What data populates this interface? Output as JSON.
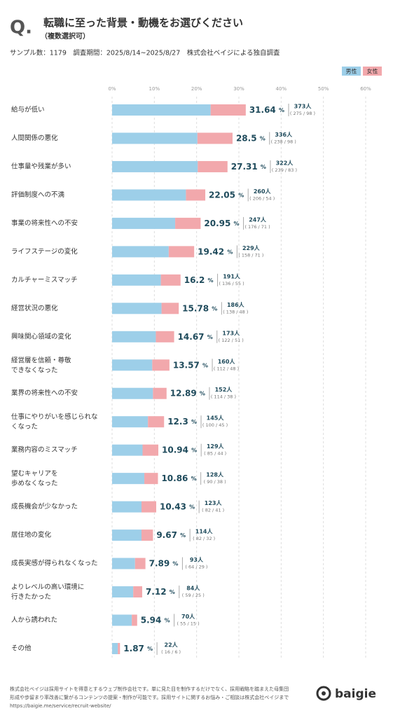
{
  "chart_data": {
    "type": "stacked-barh",
    "title_mark": "Q.",
    "title": "転職に至った背景・動機をお選びください",
    "subtitle": "（複数選択可）",
    "note": "サンプル数：1179　調査期間：2025/8/14~2025/8/27　株式会社ベイジによる独自調査",
    "categories": [
      "給与が低い",
      "人間関係の悪化",
      "仕事量や残業が多い",
      "評価制度への不満",
      "事業の将来性への不安",
      "ライフステージの変化",
      "カルチャーミスマッチ",
      "経営状況の悪化",
      "興味関心領域の変化",
      "経営層を信頼・尊敬\nできなくなった",
      "業界の将来性への不安",
      "仕事にやりがいを感じられな\nくなった",
      "業務内容のミスマッチ",
      "望むキャリアを\n歩めなくなった",
      "成長機会が少なかった",
      "居住地の変化",
      "成長実感が得られなくなった",
      "よりレベルの高い環境に\n行きたかった",
      "人から誘われた",
      "その他"
    ],
    "series": [
      {
        "name": "男性",
        "color": "#9dcfe9",
        "values": [
          23.32,
          20.19,
          20.27,
          17.47,
          14.93,
          13.4,
          11.54,
          11.7,
          10.35,
          9.5,
          9.67,
          8.48,
          7.21,
          7.63,
          6.96,
          6.96,
          5.43,
          5.0,
          4.66,
          1.36
        ]
      },
      {
        "name": "女性",
        "color": "#f2a8ac",
        "values": [
          8.31,
          8.31,
          7.04,
          4.58,
          6.02,
          6.02,
          4.66,
          4.07,
          4.33,
          4.07,
          3.22,
          3.82,
          3.73,
          3.22,
          3.48,
          2.71,
          2.46,
          2.12,
          1.27,
          0.51
        ]
      }
    ],
    "totals": {
      "values": [
        31.64,
        28.5,
        27.31,
        22.05,
        20.95,
        19.42,
        16.2,
        15.78,
        14.67,
        13.57,
        12.89,
        12.3,
        10.94,
        10.86,
        10.43,
        9.67,
        7.89,
        7.12,
        5.94,
        1.87
      ],
      "value_labels": [
        "31.64%",
        "28.5%",
        "27.31%",
        "22.05%",
        "20.95%",
        "19.42%",
        "16.2%",
        "15.78%",
        "14.67%",
        "13.57%",
        "12.89%",
        "12.3%",
        "10.94%",
        "10.86%",
        "10.43%",
        "9.67%",
        "7.89%",
        "7.12%",
        "5.94%",
        "1.87%"
      ]
    },
    "counts": {
      "values": [
        373,
        336,
        322,
        260,
        247,
        229,
        191,
        186,
        173,
        160,
        152,
        145,
        129,
        128,
        123,
        114,
        93,
        84,
        70,
        22
      ],
      "value_labels": [
        "373人",
        "336人",
        "322人",
        "260人",
        "247人",
        "229人",
        "191人",
        "186人",
        "173人",
        "160人",
        "152人",
        "145人",
        "129人",
        "128人",
        "123人",
        "114人",
        "93人",
        "84人",
        "70人",
        "22人"
      ]
    },
    "breakdown_labels": [
      "( 275 / 98 )",
      "( 238 / 98 )",
      "( 239 / 83 )",
      "( 206 / 54 )",
      "( 176 / 71 )",
      "( 158 / 71 )",
      "( 136 / 55 )",
      "( 138 / 48 )",
      "( 122 / 51 )",
      "( 112 / 48 )",
      "( 114 / 38 )",
      "( 100 / 45 )",
      "( 85 / 44 )",
      "( 90 / 38 )",
      "( 82 / 41 )",
      "( 82 / 32 )",
      "( 64 / 29 )",
      "( 59 / 25 )",
      "( 55 / 15 )",
      "( 16 / 6 )"
    ],
    "xlim": [
      0,
      60
    ],
    "xticks": [
      {
        "value": 0,
        "label": "0%"
      },
      {
        "value": 10,
        "label": "10%"
      },
      {
        "value": 20,
        "label": "20%"
      },
      {
        "value": 30,
        "label": "30%"
      },
      {
        "value": 40,
        "label": "40%"
      },
      {
        "value": 50,
        "label": "50%"
      },
      {
        "value": 60,
        "label": "60%"
      }
    ],
    "grid": true
  },
  "footer": {
    "lines": [
      "株式会社ベイジは採用サイトを得意とするウェブ制作会社です。単に見た目を制作するだけでなく、採用戦略を踏まえた母集団",
      "形成や歩留まり率改善に繋がるコンテンツの提案・制作が可能です。採用サイトに関するお悩み・ご相談は株式会社ベイジまで",
      "https://baigie.me/service/recruit-website/"
    ],
    "logo": "baigie"
  }
}
